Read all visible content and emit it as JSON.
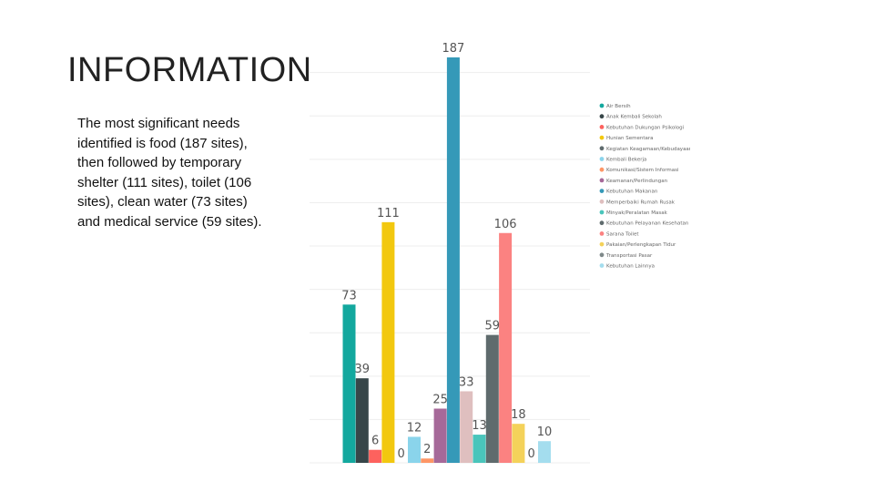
{
  "slide": {
    "title": "INFORMATION",
    "body": "The most significant needs identified is food (187 sites), then followed by temporary shelter (111 sites), toilet (106 sites), clean water (73 sites) and medical service (59 sites)."
  },
  "chart_data": {
    "type": "bar",
    "title": "",
    "xlabel": "",
    "ylabel": "",
    "ylim": [
      0,
      200
    ],
    "grid": true,
    "legend_position": "right",
    "categories": [
      "Air Bersih",
      "Anak Kembali Sekolah",
      "Kebutuhan Dukungan Psikologi",
      "Hunian Sementara",
      "Kegiatan Keagamaan/Kebudayaan",
      "Kembali Bekerja",
      "Komunikasi/Sistem Informasi",
      "Keamanan/Perlindungan",
      "Kebutuhan Makanan",
      "Memperbaiki Rumah Rusak",
      "Minyak/Peralatan Masak",
      "Kebutuhan Pelayanan Kesehatan",
      "Sarana Toilet",
      "Pakaian/Perlengkapan Tidur",
      "Transportasi Pasar",
      "Kebutuhan Lainnya"
    ],
    "values": [
      73,
      39,
      6,
      111,
      0,
      12,
      2,
      25,
      187,
      33,
      13,
      59,
      106,
      18,
      0,
      10
    ],
    "colors": [
      "#13a89e",
      "#374649",
      "#fd625e",
      "#f2c80f",
      "#5f6b6d",
      "#8ad4eb",
      "#fe9666",
      "#a66999",
      "#3599b8",
      "#dfbfbf",
      "#4ac5bb",
      "#5f6b6d",
      "#fb8281",
      "#f4d25a",
      "#7f898a",
      "#a4ddee"
    ]
  }
}
